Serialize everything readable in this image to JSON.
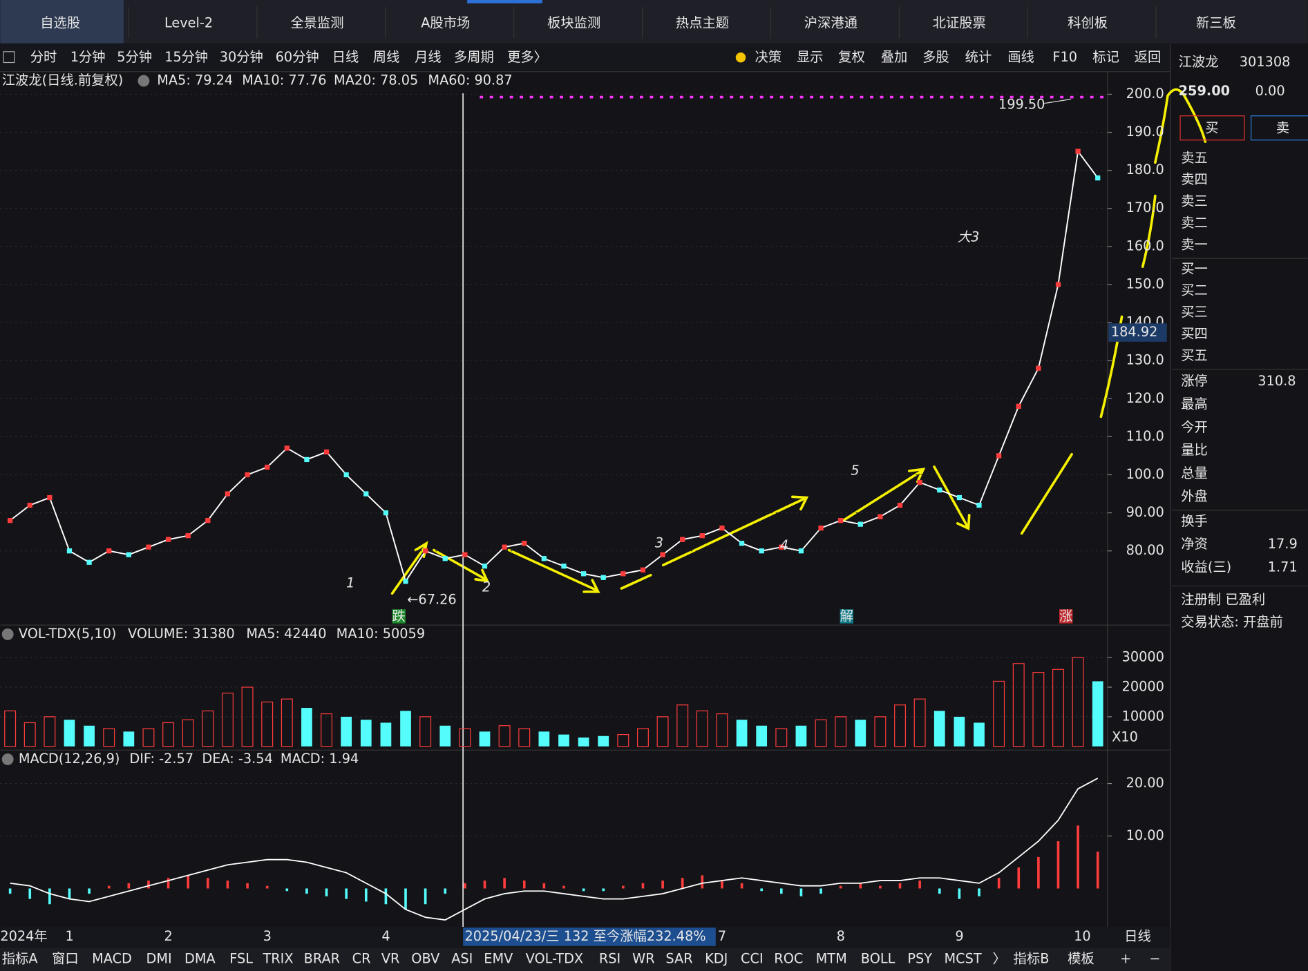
{
  "tabs": [
    "自选股",
    "Level-2",
    "全景监测",
    "A股市场",
    "板块监测",
    "热点主题",
    "沪深港通",
    "北证股票",
    "科创板",
    "新三板"
  ],
  "toolbar_left": [
    "分时",
    "1分钟",
    "5分钟",
    "15分钟",
    "30分钟",
    "60分钟",
    "日线",
    "周线",
    "月线",
    "多周期",
    "更多〉"
  ],
  "toolbar_right": [
    "决策",
    "显示",
    "复权",
    "叠加",
    "多股",
    "统计",
    "画线",
    "F10",
    "标记",
    "返回"
  ],
  "price_header": [
    "江波龙(日线.前复权)",
    "MA5: 79.24",
    "MA10: 77.76",
    "MA20: 78.05",
    "MA60: 90.87"
  ],
  "vol_header": [
    "VOL-TDX(5,10)",
    "VOLUME: 31380",
    "MA5: 42440",
    "MA10: 50059"
  ],
  "macd_header": [
    "MACD(12,26,9)",
    "DIF: -2.57",
    "DEA: -3.54",
    "MACD: 1.94"
  ],
  "bottom_tabs": [
    "指标A",
    "窗口",
    "MACD",
    "DMI",
    "DMA",
    "FSL",
    "TRIX",
    "BRAR",
    "CR",
    "VR",
    "OBV",
    "ASI",
    "EMV",
    "VOL-TDX",
    "RSI",
    "WR",
    "SAR",
    "KDJ",
    "CCI",
    "ROC",
    "MTM",
    "BOLL",
    "PSY",
    "MCST",
    "〉",
    "指标B",
    "模板",
    "+",
    "−"
  ],
  "quote": {
    "name": "江波龙",
    "code": "301308",
    "price": "259.00",
    "change": "0.00",
    "buy": "买",
    "sell": "卖",
    "asks": [
      "卖五",
      "卖四",
      "卖三",
      "卖二",
      "卖一"
    ],
    "bids": [
      "买一",
      "买二",
      "买三",
      "买四",
      "买五"
    ],
    "stats": [
      [
        "涨停",
        "310.8"
      ],
      [
        "最高",
        null
      ],
      [
        "今开",
        null
      ],
      [
        "量比",
        null
      ],
      [
        "总量",
        null
      ],
      [
        "外盘",
        null
      ]
    ],
    "stats2": [
      [
        "换手",
        null
      ],
      [
        "净资",
        "17.9"
      ],
      [
        "收益(三)",
        "1.71"
      ]
    ],
    "status": [
      "注册制 已盈利",
      "交易状态: 开盘前"
    ]
  },
  "chart_data": {
    "type": "line",
    "categories": [
      "2024年",
      null,
      null,
      "1",
      null,
      null,
      null,
      null,
      "2",
      null,
      null,
      null,
      null,
      "3",
      null,
      null,
      null,
      null,
      null,
      "4",
      null,
      null,
      null,
      null,
      null,
      null,
      null,
      null,
      null,
      null,
      null,
      null,
      null,
      null,
      null,
      null,
      "7",
      null,
      null,
      null,
      null,
      null,
      "8",
      null,
      null,
      null,
      null,
      null,
      "9",
      null,
      null,
      null,
      null,
      null,
      "10",
      null
    ],
    "period": "日线",
    "crosshair_label": "2025/04/23/三 132 至今涨幅232.48%",
    "close": [
      88,
      92,
      94,
      80,
      77,
      80,
      79,
      81,
      83,
      84,
      88,
      95,
      100,
      102,
      107,
      104,
      106,
      100,
      95,
      90,
      72,
      80,
      78,
      79,
      76,
      81,
      82,
      78,
      76,
      74,
      73,
      74,
      75,
      79,
      83,
      84,
      86,
      82,
      80,
      81,
      80,
      86,
      88,
      87,
      89,
      92,
      98,
      96,
      94,
      92,
      105,
      118,
      128,
      150,
      185,
      178
    ],
    "color": "#ffffff",
    "ylim": [
      60.5,
      202.2
    ],
    "yticks": [
      {
        "value": 80,
        "label": "80.00"
      },
      {
        "value": 90,
        "label": "90.00"
      },
      {
        "value": 100,
        "label": "100.0"
      },
      {
        "value": 110,
        "label": "110.0"
      },
      {
        "value": 120,
        "label": "120.0"
      },
      {
        "value": 130,
        "label": "130.0"
      },
      {
        "value": 140,
        "label": "140.0"
      },
      {
        "value": 150,
        "label": "150.0"
      },
      {
        "value": 160,
        "label": "160.0"
      },
      {
        "value": 170,
        "label": "170.0"
      },
      {
        "value": 180,
        "label": "180.0"
      },
      {
        "value": 190,
        "label": "190.0"
      },
      {
        "value": 200,
        "label": "200.0"
      }
    ],
    "annotations": {
      "high": "199.50",
      "low": "←67.26",
      "cursor_price": "184.92",
      "markers": [
        "跌",
        "解",
        "涨"
      ],
      "handwriting": [
        "1",
        "2",
        "3",
        "4",
        "5",
        "大3"
      ]
    },
    "volume": {
      "values": [
        12000,
        8000,
        10000,
        9000,
        7000,
        6000,
        5000,
        6000,
        8000,
        9000,
        12000,
        18000,
        20000,
        15000,
        16000,
        13000,
        11000,
        10000,
        9000,
        8000,
        12000,
        10000,
        7000,
        6000,
        5000,
        7000,
        6000,
        5000,
        4000,
        3000,
        3500,
        4000,
        6000,
        10000,
        14000,
        12000,
        11000,
        9000,
        7000,
        6000,
        7000,
        9000,
        10000,
        9000,
        10000,
        14000,
        16000,
        12000,
        10000,
        8000,
        22000,
        28000,
        25000,
        26000,
        30000,
        22000
      ],
      "ylim": [
        0,
        33000
      ],
      "yticks": [
        10000,
        20000,
        30000
      ],
      "unit_label": "X10",
      "up_color": "#ff3c3c",
      "down_color": "#54fcfc"
    },
    "macd": {
      "hist": [
        -1,
        -2,
        -3,
        -2,
        -1,
        0.5,
        1,
        1.5,
        2,
        2.5,
        2,
        1.5,
        1,
        0.5,
        -0.5,
        -1,
        -1.5,
        -2,
        -2.5,
        -3,
        -4,
        -3,
        -1,
        1,
        1.5,
        2,
        1.5,
        1,
        0.5,
        -0.5,
        -0.5,
        0.5,
        1,
        1.5,
        2,
        2.5,
        1.5,
        1,
        -0.5,
        -1,
        -1.5,
        -1,
        0.5,
        1,
        0.5,
        1,
        1.5,
        -1,
        -2,
        -1.5,
        2,
        4,
        6,
        9,
        12,
        7
      ],
      "dif": [
        1,
        0.5,
        -1,
        -2,
        -2.5,
        -1.5,
        -0.5,
        0.5,
        1.5,
        2.5,
        3.5,
        4.5,
        5,
        5.5,
        5.5,
        5,
        4,
        3,
        1,
        -1,
        -4,
        -5.5,
        -6,
        -4,
        -2,
        -1,
        -0.5,
        -0.5,
        -1,
        -1.5,
        -2,
        -2,
        -1.5,
        -1,
        0,
        1,
        1.5,
        2,
        1.5,
        1,
        0.5,
        0.5,
        1,
        1,
        1.5,
        1.5,
        2,
        2,
        1.5,
        1,
        3,
        6,
        9,
        13,
        19,
        21
      ],
      "ylim": [
        -7,
        22.4
      ],
      "yticks": [
        {
          "value": 10,
          "label": "10.00"
        },
        {
          "value": 20,
          "label": "20.00"
        }
      ],
      "up_color": "#ff3c3c",
      "down_color": "#54fcfc",
      "dif_color": "#ffffff"
    }
  }
}
